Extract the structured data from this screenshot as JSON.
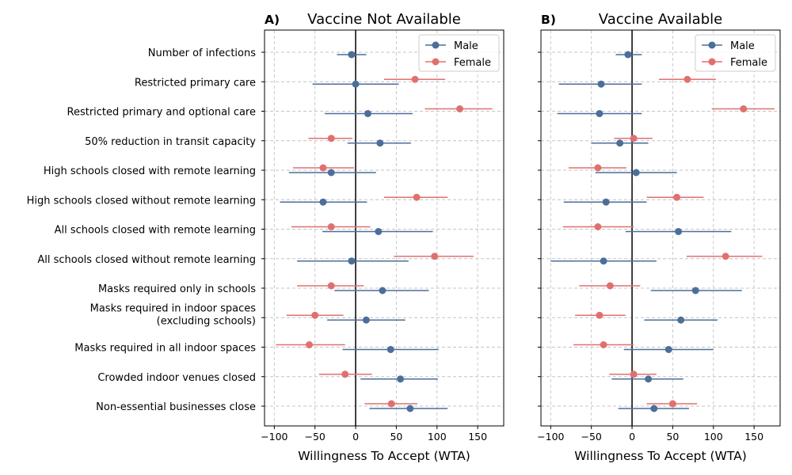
{
  "chart_data": [
    {
      "type": "scatter",
      "panel_label": "A)",
      "title": "Vaccine Not Available",
      "xlabel": "Willingness To Accept (WTA)",
      "xlim": [
        -112,
        182
      ],
      "xticks": [
        -100,
        -50,
        0,
        50,
        100,
        150
      ],
      "grid": true,
      "legend_position": "top-right",
      "categories": [
        "Number of infections",
        "Restricted primary care",
        "Restricted primary and optional care",
        "50% reduction in transit capacity",
        "High schools closed with remote learning",
        "High schools closed without remote learning",
        "All schools closed with remote learning",
        "All schools closed without remote learning",
        "Masks required only in schools",
        "Masks required in indoor spaces\n(excluding schools)",
        "Masks required in all indoor spaces",
        "Crowded indoor venues closed",
        "Non-essential businesses close"
      ],
      "series": [
        {
          "name": "Male",
          "color": "#4c6e9a",
          "values": [
            -5,
            0,
            15,
            30,
            -30,
            -40,
            28,
            -5,
            33,
            13,
            43,
            55,
            67
          ],
          "ci_low": [
            -23,
            -53,
            -38,
            -10,
            -82,
            -93,
            -41,
            -72,
            -26,
            -35,
            -16,
            6,
            17
          ],
          "ci_high": [
            13,
            53,
            70,
            68,
            25,
            14,
            95,
            65,
            90,
            61,
            102,
            101,
            113
          ]
        },
        {
          "name": "Female",
          "color": "#e07070",
          "values": [
            null,
            73,
            128,
            -30,
            -40,
            75,
            -30,
            97,
            -30,
            -50,
            -57,
            -13,
            44
          ],
          "ci_low": [
            null,
            35,
            85,
            -58,
            -77,
            35,
            -79,
            47,
            -72,
            -85,
            -98,
            -45,
            11
          ],
          "ci_high": [
            null,
            110,
            168,
            -4,
            -2,
            113,
            18,
            145,
            10,
            -15,
            -13,
            20,
            76
          ]
        }
      ]
    },
    {
      "type": "scatter",
      "panel_label": "B)",
      "title": "Vaccine Available",
      "xlabel": "Willingness To Accept (WTA)",
      "xlim": [
        -112,
        182
      ],
      "xticks": [
        -100,
        -50,
        0,
        50,
        100,
        150
      ],
      "grid": true,
      "legend_position": "top-right",
      "series": [
        {
          "name": "Male",
          "color": "#4c6e9a",
          "values": [
            -5,
            -38,
            -40,
            -15,
            5,
            -32,
            57,
            -35,
            78,
            60,
            45,
            20,
            27
          ],
          "ci_low": [
            -20,
            -90,
            -92,
            -50,
            -45,
            -84,
            -8,
            -100,
            23,
            15,
            -10,
            -25,
            -17
          ],
          "ci_high": [
            12,
            12,
            12,
            20,
            55,
            18,
            122,
            30,
            135,
            105,
            100,
            63,
            70
          ]
        },
        {
          "name": "Female",
          "color": "#e07070",
          "values": [
            null,
            68,
            137,
            2,
            -42,
            55,
            -42,
            115,
            -27,
            -40,
            -35,
            2,
            50
          ],
          "ci_low": [
            null,
            33,
            98,
            -22,
            -78,
            18,
            -85,
            67,
            -65,
            -70,
            -72,
            -28,
            18
          ],
          "ci_high": [
            null,
            103,
            175,
            25,
            -7,
            88,
            2,
            160,
            10,
            -8,
            2,
            30,
            80
          ]
        }
      ]
    }
  ]
}
